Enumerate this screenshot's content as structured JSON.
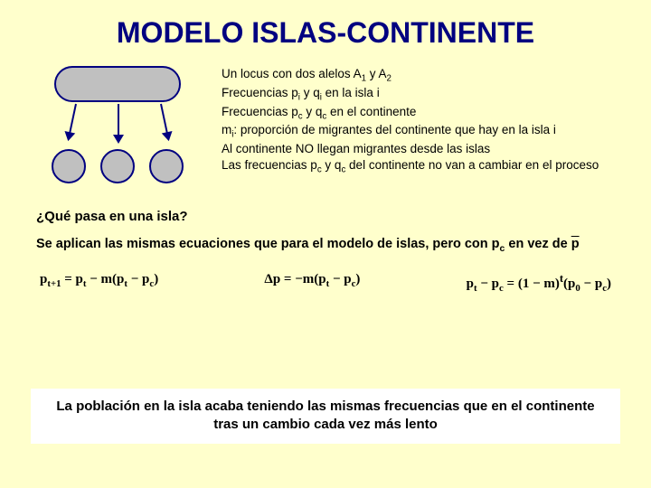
{
  "title": "MODELO ISLAS-CONTINENTE",
  "colors": {
    "background": "#ffffcc",
    "title_color": "#000080",
    "shape_fill": "#c0c0c0",
    "shape_border": "#000080",
    "text_color": "#000000",
    "conclusion_bg": "#ffffff"
  },
  "diagram": {
    "type": "network",
    "continent_shape": "rounded-rect",
    "islands": 3,
    "island_shape": "circle",
    "arrows_from_continent_to_each_island": true,
    "arrow_color": "#000080"
  },
  "bullets": {
    "l1_pre": "Un locus con dos alelos A",
    "l1_mid": " y A",
    "l2_pre": "Frecuencias p",
    "l2_mid": " y q",
    "l2_post": " en la isla i",
    "l3_pre": "Frecuencias p",
    "l3_mid": " y q",
    "l3_post": " en el continente",
    "l4_pre": "m",
    "l4_post": ": proporción de migrantes del continente que hay en la isla i",
    "l5": "Al continente NO llegan migrantes desde las islas",
    "l6_pre": "Las frecuencias p",
    "l6_mid": " y q",
    "l6_post": " del continente no van a cambiar en el proceso"
  },
  "question": "¿Qué pasa en una isla?",
  "intro_pre": "Se aplican las mismas ecuaciones que para el modelo de islas, pero con p",
  "intro_sub": "c",
  "intro_post": " en vez de ",
  "intro_pbar": "p",
  "equations": {
    "eq1_lhs": "p",
    "eq1_sub1": "t+1",
    "eq1_mid": " = p",
    "eq1_sub2": "t",
    "eq1_m1": " − m(p",
    "eq1_sub3": "t",
    "eq1_m2": " − p",
    "eq1_sub4": "c",
    "eq1_end": ")",
    "eq2_pre": "Δp = −m(p",
    "eq2_sub1": "t",
    "eq2_mid": " − p",
    "eq2_sub2": "c",
    "eq2_end": ")",
    "eq3_pre": "p",
    "eq3_sub1": "t",
    "eq3_m1": " − p",
    "eq3_sub2": "c",
    "eq3_m2": " = (1 − m)",
    "eq3_sup": "t",
    "eq3_m3": "(p",
    "eq3_sub3": "0",
    "eq3_m4": " − p",
    "eq3_sub4": "c",
    "eq3_end": ")"
  },
  "conclusion": "La población en la isla acaba teniendo las mismas frecuencias que en el continente tras un cambio cada vez más lento"
}
